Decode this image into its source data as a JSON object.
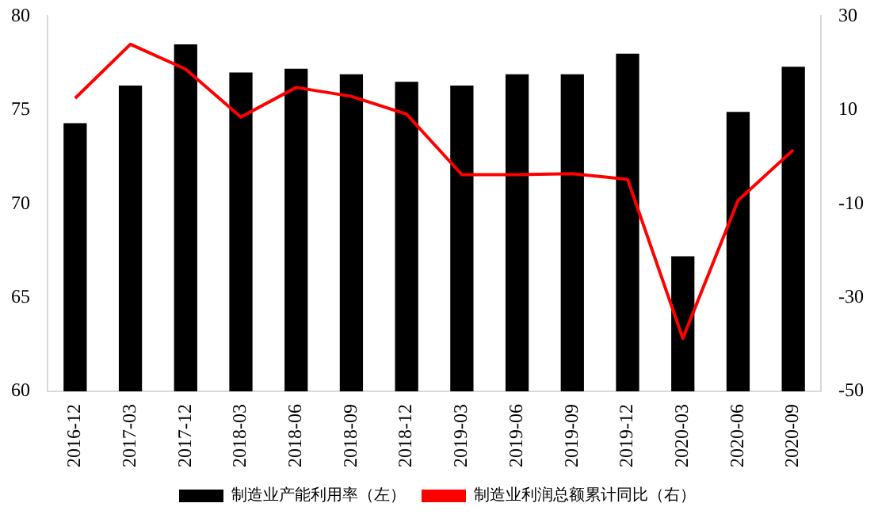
{
  "chart_data": {
    "type": "bar",
    "categories": [
      "2016-12",
      "2017-03",
      "2017-12",
      "2018-03",
      "2018-06",
      "2018-09",
      "2018-12",
      "2019-03",
      "2019-06",
      "2019-09",
      "2019-12",
      "2020-03",
      "2020-06",
      "2020-09"
    ],
    "series": [
      {
        "name": "制造业产能利用率（左）",
        "color": "#000000",
        "values": [
          74.3,
          76.3,
          78.5,
          77.0,
          77.2,
          76.9,
          76.5,
          76.3,
          76.9,
          76.9,
          78.0,
          67.2,
          74.9,
          77.3
        ]
      },
      {
        "name": "制造业利润总额累计同比（右）",
        "type": "line",
        "axis": "y2",
        "color": "#ff0000",
        "values": [
          12.5,
          24.0,
          18.7,
          8.5,
          14.8,
          12.9,
          9.1,
          -3.8,
          -3.8,
          -3.6,
          -4.8,
          -38.7,
          -9.3,
          1.5
        ]
      }
    ],
    "ylim": [
      60,
      80
    ],
    "yticks": [
      60,
      65,
      70,
      75,
      80
    ],
    "y2lim": [
      -50,
      30
    ],
    "y2ticks": [
      -50,
      -30,
      -10,
      10,
      30
    ],
    "grid": false,
    "legend": "bottom",
    "marker": "none"
  }
}
